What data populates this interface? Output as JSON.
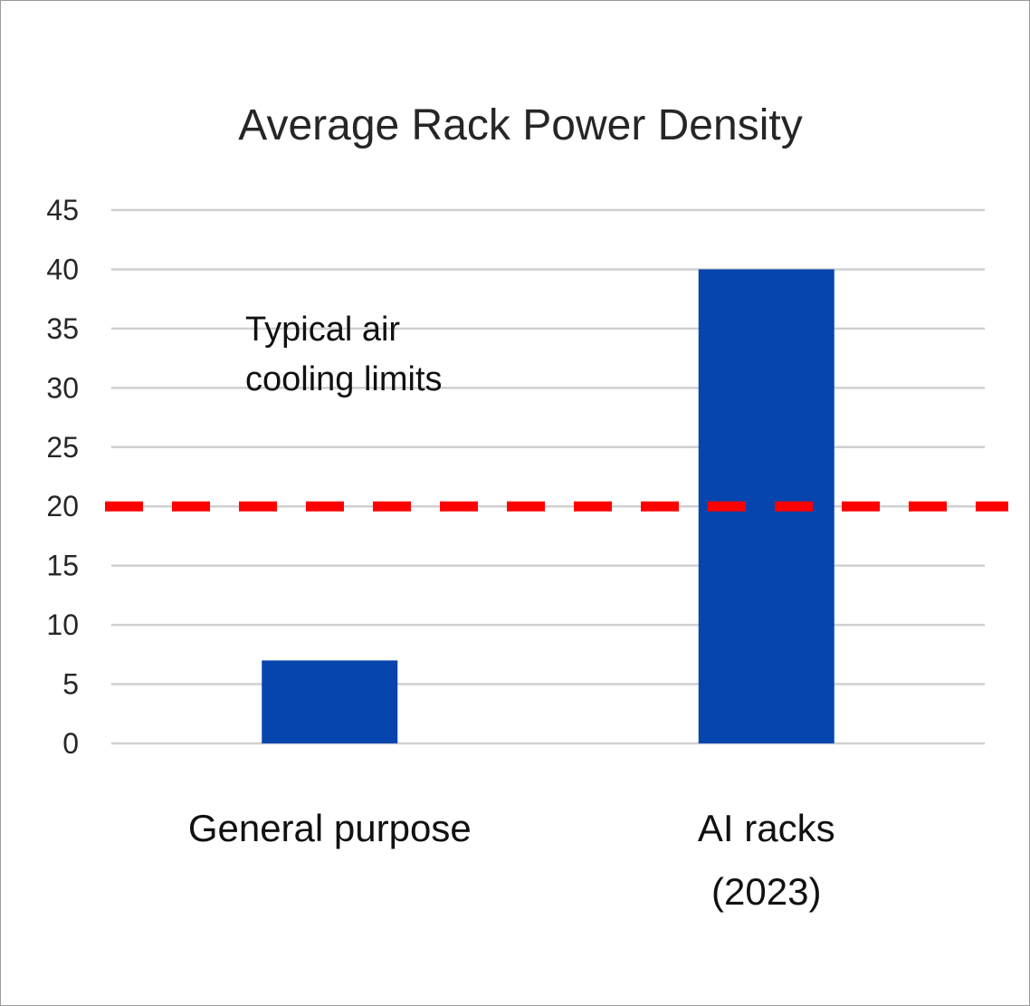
{
  "chart_data": {
    "type": "bar",
    "title": "Average Rack Power Density",
    "xlabel": "",
    "ylabel": "",
    "categories": [
      [
        "General purpose"
      ],
      [
        "AI racks",
        "(2023)"
      ]
    ],
    "values": [
      7,
      40
    ],
    "ylim": [
      0,
      45
    ],
    "yticks": [
      0,
      5,
      10,
      15,
      20,
      25,
      30,
      35,
      40,
      45
    ],
    "grid": true,
    "legend": "none",
    "bar_color": "#0645AD",
    "reference_line": {
      "value": 20,
      "style": "dashed",
      "color": "#FF0000",
      "label": [
        "Typical air",
        "cooling limits"
      ]
    }
  }
}
